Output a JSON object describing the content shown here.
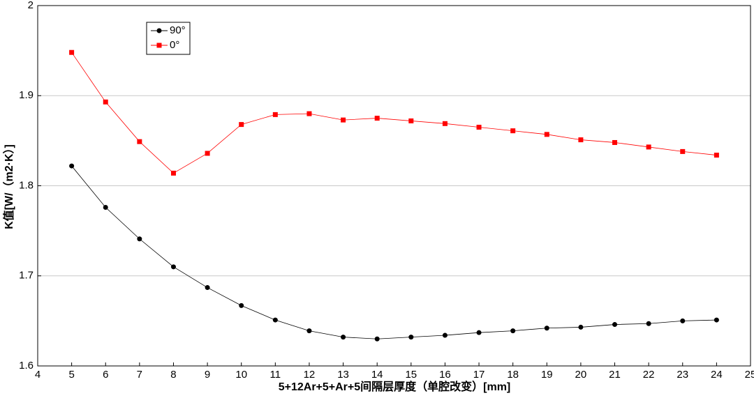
{
  "chart_data": {
    "type": "line",
    "xlabel": "5+12Ar+5+Ar+5间隔层厚度（单腔改变）[mm]",
    "ylabel": "K值[W/（m2·K）]",
    "x": [
      5,
      6,
      7,
      8,
      9,
      10,
      11,
      12,
      13,
      14,
      15,
      16,
      17,
      18,
      19,
      20,
      21,
      22,
      23,
      24
    ],
    "series": [
      {
        "name": "90°",
        "color": "#000000",
        "marker": "circle",
        "values": [
          1.822,
          1.776,
          1.741,
          1.71,
          1.687,
          1.667,
          1.651,
          1.639,
          1.632,
          1.63,
          1.632,
          1.634,
          1.637,
          1.639,
          1.642,
          1.643,
          1.646,
          1.647,
          1.65,
          1.651
        ]
      },
      {
        "name": "0°",
        "color": "#ff0000",
        "marker": "square",
        "values": [
          1.948,
          1.893,
          1.849,
          1.814,
          1.836,
          1.868,
          1.879,
          1.88,
          1.873,
          1.875,
          1.872,
          1.869,
          1.865,
          1.861,
          1.857,
          1.851,
          1.848,
          1.843,
          1.838,
          1.834
        ]
      }
    ],
    "xlim": [
      4,
      25
    ],
    "ylim": [
      1.6,
      2
    ],
    "xticks": [
      4,
      5,
      6,
      7,
      8,
      9,
      10,
      11,
      12,
      13,
      14,
      15,
      16,
      17,
      18,
      19,
      20,
      21,
      22,
      23,
      24,
      25
    ],
    "yticks": [
      1.6,
      1.7,
      1.8,
      1.9,
      2
    ],
    "grid": true,
    "legend": "upper-left"
  }
}
